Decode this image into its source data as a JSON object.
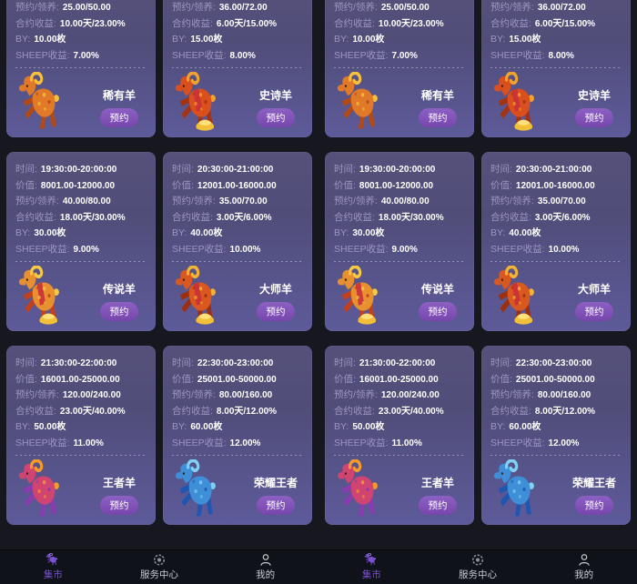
{
  "colors": {
    "page_bg": "#17171f",
    "card_top": "#55517b",
    "card_bottom": "#5d5a9a",
    "button": "#7746ad",
    "tab_active": "#7a4fd4"
  },
  "button_label": "预约",
  "cards": [
    {
      "name": "稀有羊",
      "lines": [
        {
          "label": "预约/领养:",
          "value": "25.00/50.00"
        },
        {
          "label": "合约收益:",
          "value": "10.00天/23.00%"
        },
        {
          "label": "BY:",
          "value": "10.00枚"
        },
        {
          "label": "SHEEP收益:",
          "value": "7.00%"
        }
      ],
      "sheep": {
        "icon": "rare-sheep-icon",
        "body": "#e07a28",
        "accent": "#f6bf3d",
        "dark": "#b14a16",
        "gold": false,
        "vest": ""
      }
    },
    {
      "name": "史诗羊",
      "lines": [
        {
          "label": "预约/领养:",
          "value": "36.00/72.00"
        },
        {
          "label": "合约收益:",
          "value": "6.00天/15.00%"
        },
        {
          "label": "BY:",
          "value": "15.00枚"
        },
        {
          "label": "SHEEP收益:",
          "value": "8.00%"
        }
      ],
      "sheep": {
        "icon": "epic-sheep-icon",
        "body": "#d94f1e",
        "accent": "#f3a32c",
        "dark": "#a33312",
        "gold": true,
        "vest": "#c9303a"
      }
    },
    {
      "name": "传说羊",
      "lines": [
        {
          "label": "时间:",
          "value": "19:30:00-20:00:00"
        },
        {
          "label": "价值:",
          "value": "8001.00-12000.00"
        },
        {
          "label": "预约/领养:",
          "value": "40.00/80.00"
        },
        {
          "label": "合约收益:",
          "value": "18.00天/30.00%"
        },
        {
          "label": "BY:",
          "value": "30.00枚"
        },
        {
          "label": "SHEEP收益:",
          "value": "9.00%"
        }
      ],
      "sheep": {
        "icon": "legend-sheep-icon",
        "body": "#e8902f",
        "accent": "#f6c845",
        "dark": "#c2401c",
        "gold": true,
        "vest": "#c9303a"
      }
    },
    {
      "name": "大师羊",
      "lines": [
        {
          "label": "时间:",
          "value": "20:30:00-21:00:00"
        },
        {
          "label": "价值:",
          "value": "12001.00-16000.00"
        },
        {
          "label": "预约/领养:",
          "value": "35.00/70.00"
        },
        {
          "label": "合约收益:",
          "value": "3.00天/6.00%"
        },
        {
          "label": "BY:",
          "value": "40.00枚"
        },
        {
          "label": "SHEEP收益:",
          "value": "10.00%"
        }
      ],
      "sheep": {
        "icon": "master-sheep-icon",
        "body": "#d85820",
        "accent": "#f3b335",
        "dark": "#9c2f10",
        "gold": true,
        "vest": "#c9303a"
      }
    },
    {
      "name": "王者羊",
      "lines": [
        {
          "label": "时间:",
          "value": "21:30:00-22:00:00"
        },
        {
          "label": "价值:",
          "value": "16001.00-25000.00"
        },
        {
          "label": "预约/领养:",
          "value": "120.00/240.00"
        },
        {
          "label": "合约收益:",
          "value": "23.00天/40.00%"
        },
        {
          "label": "BY:",
          "value": "50.00枚"
        },
        {
          "label": "SHEEP收益:",
          "value": "11.00%"
        }
      ],
      "sheep": {
        "icon": "king-sheep-icon",
        "body": "#cf4470",
        "accent": "#f59a2b",
        "dark": "#8a3bb0",
        "gold": false,
        "vest": ""
      }
    },
    {
      "name": "荣耀王者",
      "lines": [
        {
          "label": "时间:",
          "value": "22:30:00-23:00:00"
        },
        {
          "label": "价值:",
          "value": "25001.00-50000.00"
        },
        {
          "label": "预约/领养:",
          "value": "80.00/160.00"
        },
        {
          "label": "合约收益:",
          "value": "8.00天/12.00%"
        },
        {
          "label": "BY:",
          "value": "60.00枚"
        },
        {
          "label": "SHEEP收益:",
          "value": "12.00%"
        }
      ],
      "sheep": {
        "icon": "glory-sheep-icon",
        "body": "#3f8fd8",
        "accent": "#7fd0f2",
        "dark": "#1f56b0",
        "gold": false,
        "vest": ""
      }
    }
  ],
  "tabbar": [
    {
      "label": "集市",
      "icon": "market-goat-icon",
      "active": true
    },
    {
      "label": "服务中心",
      "icon": "service-center-icon",
      "active": false
    },
    {
      "label": "我的",
      "icon": "profile-icon",
      "active": false
    }
  ]
}
